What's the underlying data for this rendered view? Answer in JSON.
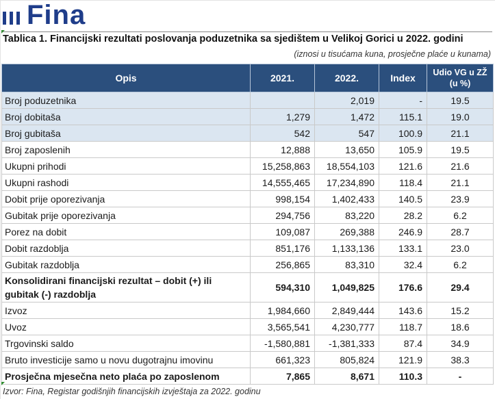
{
  "logo": {
    "text": "Fina"
  },
  "title": "Tablica 1. Financijski rezultati poslovanja poduzetnika sa sjedištem u Velikoj Gorici u 2022. godini",
  "units_note": "(iznosi u tisućama kuna, prosječne plaće u kunama)",
  "table": {
    "headers": [
      "Opis",
      "2021.",
      "2022.",
      "Index",
      "Udio VG u ZŽ (u %)"
    ],
    "rows": [
      {
        "opis": "Broj poduzetnika",
        "y2021": "",
        "y2022": "2,019",
        "index": "-",
        "udio": "19.5",
        "shaded": true,
        "bold": false
      },
      {
        "opis": "Broj dobitaša",
        "y2021": "1,279",
        "y2022": "1,472",
        "index": "115.1",
        "udio": "19.0",
        "shaded": true,
        "bold": false
      },
      {
        "opis": "Broj gubitaša",
        "y2021": "542",
        "y2022": "547",
        "index": "100.9",
        "udio": "21.1",
        "shaded": true,
        "bold": false
      },
      {
        "opis": "Broj zaposlenih",
        "y2021": "12,888",
        "y2022": "13,650",
        "index": "105.9",
        "udio": "19.5",
        "shaded": false,
        "bold": false
      },
      {
        "opis": "Ukupni prihodi",
        "y2021": "15,258,863",
        "y2022": "18,554,103",
        "index": "121.6",
        "udio": "21.6",
        "shaded": false,
        "bold": false
      },
      {
        "opis": "Ukupni rashodi",
        "y2021": "14,555,465",
        "y2022": "17,234,890",
        "index": "118.4",
        "udio": "21.1",
        "shaded": false,
        "bold": false
      },
      {
        "opis": "Dobit prije oporezivanja",
        "y2021": "998,154",
        "y2022": "1,402,433",
        "index": "140.5",
        "udio": "23.9",
        "shaded": false,
        "bold": false
      },
      {
        "opis": "Gubitak prije oporezivanja",
        "y2021": "294,756",
        "y2022": "83,220",
        "index": "28.2",
        "udio": "6.2",
        "shaded": false,
        "bold": false
      },
      {
        "opis": "Porez na dobit",
        "y2021": "109,087",
        "y2022": "269,388",
        "index": "246.9",
        "udio": "28.7",
        "shaded": false,
        "bold": false
      },
      {
        "opis": "Dobit razdoblja",
        "y2021": "851,176",
        "y2022": "1,133,136",
        "index": "133.1",
        "udio": "23.0",
        "shaded": false,
        "bold": false
      },
      {
        "opis": "Gubitak razdoblja",
        "y2021": "256,865",
        "y2022": "83,310",
        "index": "32.4",
        "udio": "6.2",
        "shaded": false,
        "bold": false
      },
      {
        "opis": "Konsolidirani financijski rezultat – dobit (+) ili gubitak (-) razdoblja",
        "y2021": "594,310",
        "y2022": "1,049,825",
        "index": "176.6",
        "udio": "29.4",
        "shaded": false,
        "bold": true,
        "tall": true
      },
      {
        "opis": "Izvoz",
        "y2021": "1,984,660",
        "y2022": "2,849,444",
        "index": "143.6",
        "udio": "15.2",
        "shaded": false,
        "bold": false
      },
      {
        "opis": "Uvoz",
        "y2021": "3,565,541",
        "y2022": "4,230,777",
        "index": "118.7",
        "udio": "18.6",
        "shaded": false,
        "bold": false
      },
      {
        "opis": "Trgovinski saldo",
        "y2021": "-1,580,881",
        "y2022": "-1,381,333",
        "index": "87.4",
        "udio": "34.9",
        "shaded": false,
        "bold": false
      },
      {
        "opis": "Bruto investicije samo u novu dugotrajnu imovinu",
        "y2021": "661,323",
        "y2022": "805,824",
        "index": "121.9",
        "udio": "38.3",
        "shaded": false,
        "bold": false
      },
      {
        "opis": "Prosječna mjesečna neto plaća po zaposlenom",
        "y2021": "7,865",
        "y2022": "8,671",
        "index": "110.3",
        "udio": "-",
        "shaded": false,
        "bold": true
      }
    ]
  },
  "source": "Izvor: Fina, Registar godišnjih financijskih izvještaja za 2022. godinu",
  "colors": {
    "header_bg": "#2b4f7d",
    "shaded_row": "#dbe6f1",
    "brand": "#1f3d8a"
  }
}
